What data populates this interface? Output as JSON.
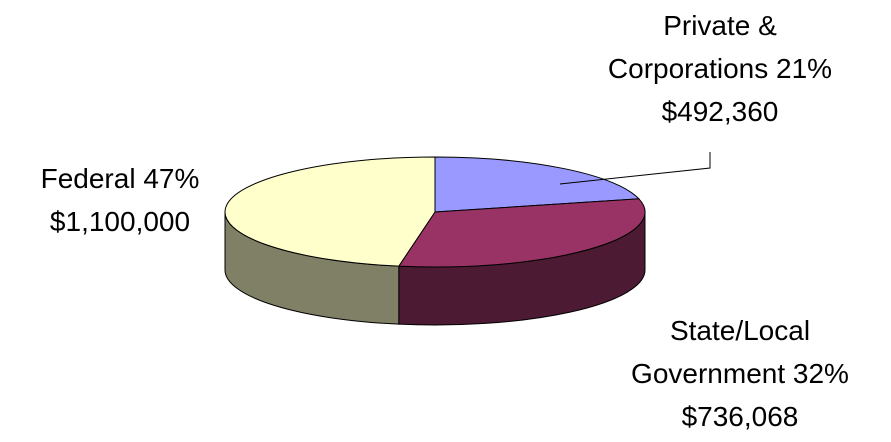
{
  "chart_data": {
    "type": "pie3d",
    "categories": [
      "Private & Corporations",
      "State/Local Government",
      "Federal"
    ],
    "values": [
      492360,
      736068,
      1100000
    ],
    "value_labels": [
      "$492,360",
      "$736,068",
      "$1,100,000"
    ],
    "percent_labels": [
      "21%",
      "32%",
      "47%"
    ],
    "colors": [
      "#9999ff",
      "#993366",
      "#ffffcc"
    ]
  }
}
